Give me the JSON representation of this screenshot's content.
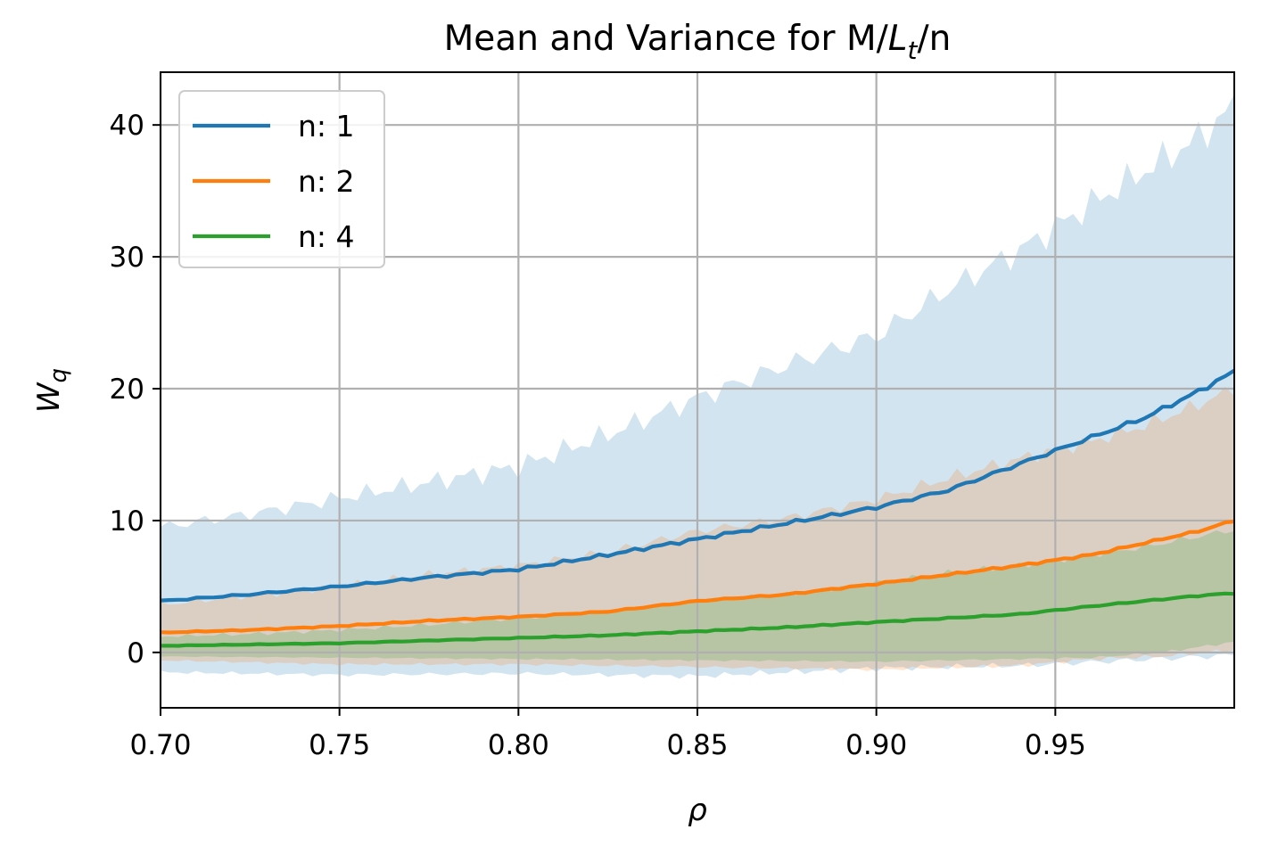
{
  "chart_data": {
    "type": "line",
    "title_main": "Mean and Variance for M/",
    "title_italic": "L",
    "title_sub": "t",
    "title_tail": "/n",
    "xlabel": "ρ",
    "ylabel_main": "W",
    "ylabel_sub": "q",
    "xlim": [
      0.7,
      1.0
    ],
    "ylim": [
      -4.2,
      44
    ],
    "xticks": [
      0.7,
      0.75,
      0.8,
      0.85,
      0.9,
      0.95
    ],
    "xtick_labels": [
      "0.70",
      "0.75",
      "0.80",
      "0.85",
      "0.90",
      "0.95"
    ],
    "yticks": [
      0,
      10,
      20,
      30,
      40
    ],
    "ytick_labels": [
      "0",
      "10",
      "20",
      "30",
      "40"
    ],
    "grid": true,
    "legend_position": "top-left",
    "series": [
      {
        "name": "n: 1",
        "color": "#1f77b4",
        "mean": [
          [
            0.7,
            3.9
          ],
          [
            0.725,
            4.4
          ],
          [
            0.75,
            5.0
          ],
          [
            0.775,
            5.7
          ],
          [
            0.8,
            6.3
          ],
          [
            0.825,
            7.4
          ],
          [
            0.85,
            8.6
          ],
          [
            0.875,
            9.8
          ],
          [
            0.9,
            11.0
          ],
          [
            0.92,
            12.3
          ],
          [
            0.94,
            14.3
          ],
          [
            0.96,
            16.3
          ],
          [
            0.975,
            17.8
          ],
          [
            0.99,
            19.8
          ],
          [
            1.0,
            21.3
          ]
        ],
        "upper": [
          [
            0.7,
            9.5
          ],
          [
            0.725,
            10.5
          ],
          [
            0.75,
            11.7
          ],
          [
            0.775,
            12.9
          ],
          [
            0.8,
            14.1
          ],
          [
            0.825,
            16.5
          ],
          [
            0.85,
            19.3
          ],
          [
            0.875,
            21.8
          ],
          [
            0.9,
            24.0
          ],
          [
            0.92,
            27.5
          ],
          [
            0.94,
            30.5
          ],
          [
            0.96,
            34.0
          ],
          [
            0.975,
            36.5
          ],
          [
            0.99,
            39.0
          ],
          [
            1.0,
            41.5
          ]
        ],
        "lower": [
          [
            0.7,
            -1.5
          ],
          [
            0.75,
            -1.7
          ],
          [
            0.8,
            -1.6
          ],
          [
            0.85,
            -1.8
          ],
          [
            0.875,
            -1.5
          ],
          [
            0.9,
            -1.2
          ],
          [
            0.94,
            -1.0
          ],
          [
            0.97,
            -0.6
          ],
          [
            1.0,
            -0.2
          ]
        ]
      },
      {
        "name": "n: 2",
        "color": "#ff7f0e",
        "mean": [
          [
            0.7,
            1.5
          ],
          [
            0.725,
            1.7
          ],
          [
            0.75,
            2.0
          ],
          [
            0.775,
            2.4
          ],
          [
            0.8,
            2.7
          ],
          [
            0.825,
            3.1
          ],
          [
            0.85,
            3.9
          ],
          [
            0.875,
            4.4
          ],
          [
            0.9,
            5.2
          ],
          [
            0.92,
            5.9
          ],
          [
            0.94,
            6.6
          ],
          [
            0.96,
            7.4
          ],
          [
            0.975,
            8.3
          ],
          [
            0.99,
            9.2
          ],
          [
            1.0,
            10.0
          ]
        ],
        "upper": [
          [
            0.7,
            3.6
          ],
          [
            0.725,
            4.3
          ],
          [
            0.75,
            5.0
          ],
          [
            0.775,
            5.9
          ],
          [
            0.8,
            6.6
          ],
          [
            0.825,
            7.6
          ],
          [
            0.85,
            9.2
          ],
          [
            0.875,
            10.2
          ],
          [
            0.9,
            11.6
          ],
          [
            0.92,
            13.2
          ],
          [
            0.94,
            14.7
          ],
          [
            0.96,
            16.0
          ],
          [
            0.975,
            17.2
          ],
          [
            0.99,
            18.8
          ],
          [
            1.0,
            20.0
          ]
        ],
        "lower": [
          [
            0.7,
            -0.6
          ],
          [
            0.75,
            -0.9
          ],
          [
            0.8,
            -0.9
          ],
          [
            0.85,
            -1.1
          ],
          [
            0.9,
            -1.3
          ],
          [
            0.94,
            -1.0
          ],
          [
            0.96,
            -0.5
          ],
          [
            0.98,
            -0.3
          ],
          [
            1.0,
            0.2
          ]
        ]
      },
      {
        "name": "n: 4",
        "color": "#2ca02c",
        "mean": [
          [
            0.7,
            0.5
          ],
          [
            0.725,
            0.6
          ],
          [
            0.75,
            0.7
          ],
          [
            0.775,
            0.9
          ],
          [
            0.8,
            1.1
          ],
          [
            0.825,
            1.3
          ],
          [
            0.85,
            1.6
          ],
          [
            0.875,
            1.9
          ],
          [
            0.9,
            2.3
          ],
          [
            0.92,
            2.6
          ],
          [
            0.94,
            2.9
          ],
          [
            0.96,
            3.5
          ],
          [
            0.975,
            3.9
          ],
          [
            0.99,
            4.3
          ],
          [
            1.0,
            4.5
          ]
        ],
        "upper": [
          [
            0.7,
            1.2
          ],
          [
            0.725,
            1.4
          ],
          [
            0.75,
            1.7
          ],
          [
            0.775,
            2.1
          ],
          [
            0.8,
            2.6
          ],
          [
            0.825,
            3.1
          ],
          [
            0.85,
            3.9
          ],
          [
            0.875,
            4.4
          ],
          [
            0.9,
            5.3
          ],
          [
            0.92,
            6.0
          ],
          [
            0.94,
            6.6
          ],
          [
            0.96,
            7.4
          ],
          [
            0.975,
            8.0
          ],
          [
            0.99,
            8.8
          ],
          [
            1.0,
            9.3
          ]
        ],
        "lower": [
          [
            0.7,
            -0.3
          ],
          [
            0.75,
            -0.4
          ],
          [
            0.8,
            -0.5
          ],
          [
            0.85,
            -0.6
          ],
          [
            0.9,
            -0.7
          ],
          [
            0.94,
            -0.5
          ],
          [
            0.96,
            -0.4
          ],
          [
            0.98,
            0.0
          ],
          [
            1.0,
            0.8
          ]
        ]
      }
    ]
  }
}
